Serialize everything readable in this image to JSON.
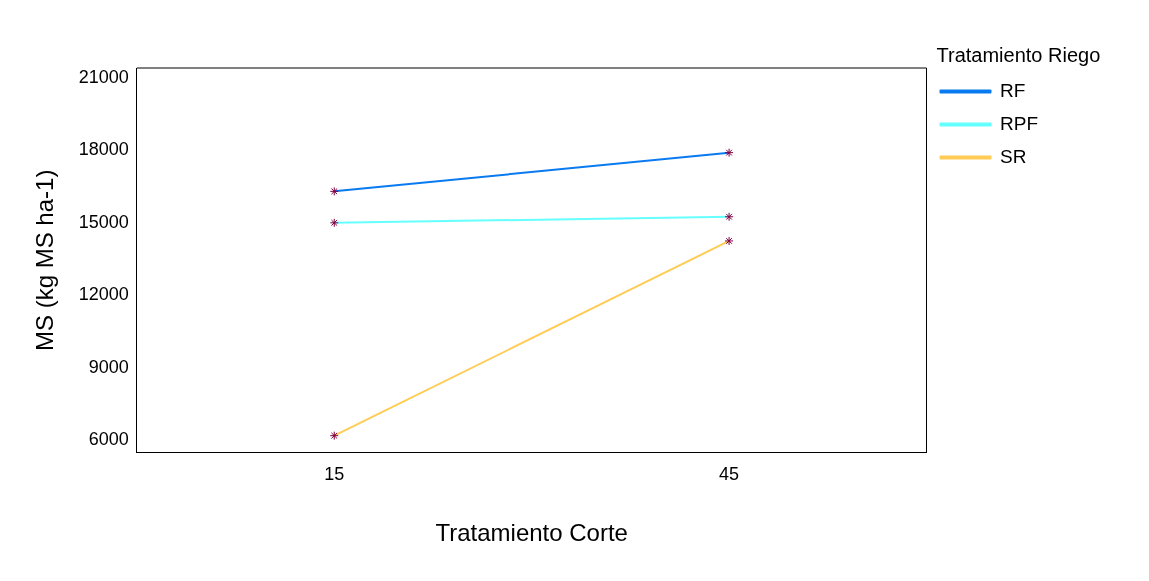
{
  "chart_data": {
    "type": "line",
    "xlabel": "Tratamiento Corte",
    "ylabel": "MS (kg MS ha-1)",
    "legend_title": "Tratamiento Riego",
    "categories": [
      "15",
      "45"
    ],
    "series": [
      {
        "name": "RF",
        "color": "#0a7af0",
        "values": [
          16300,
          17900
        ]
      },
      {
        "name": "RPF",
        "color": "#66ffff",
        "values": [
          15000,
          15250
        ]
      },
      {
        "name": "SR",
        "color": "#ffcc55",
        "values": [
          6200,
          14250
        ]
      }
    ],
    "ylim": [
      5500,
      21400
    ],
    "yticks": [
      6000,
      9000,
      12000,
      15000,
      18000,
      21000
    ],
    "grid": false,
    "legend": "right",
    "marker": "cross",
    "line_style": "solid"
  }
}
